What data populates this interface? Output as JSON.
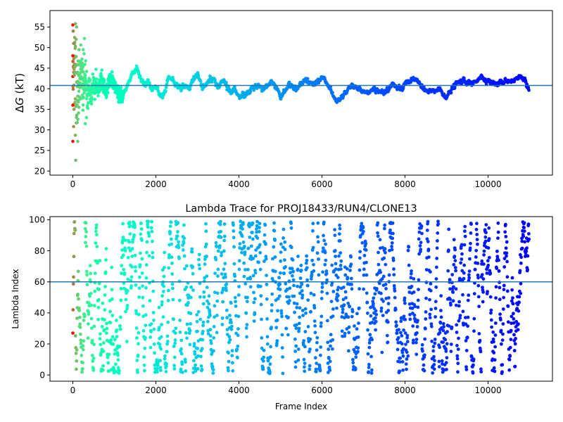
{
  "chart_data": [
    {
      "type": "scatter",
      "title": "",
      "xlabel": "",
      "ylabel": "ΔG (kT)",
      "ylabel_parts": {
        "delta": "Δ",
        "symbol": "G",
        "unit": " (kT)"
      },
      "xlim": [
        -550,
        11550
      ],
      "ylim": [
        19,
        59
      ],
      "xticks": [
        0,
        2000,
        4000,
        6000,
        8000,
        10000
      ],
      "yticks": [
        20,
        25,
        30,
        35,
        40,
        45,
        50,
        55
      ],
      "hline": 40.8,
      "hline_color": "#1f77b4",
      "colormap": "rainbow",
      "color_encoding": "frame index (red early, violet late)",
      "x_range": [
        0,
        10990
      ],
      "trace_profile": {
        "x": [
          0,
          50,
          100,
          150,
          200,
          250,
          300,
          350,
          400,
          450,
          500,
          600,
          700,
          800,
          900,
          1000,
          1100,
          1200,
          1300,
          1400,
          1500,
          1600,
          1700,
          1800,
          1900,
          2000,
          2100,
          2200,
          2300,
          2400,
          2500,
          2600,
          2700,
          2800,
          2900,
          3000,
          3100,
          3200,
          3300,
          3400,
          3500,
          3600,
          3700,
          3800,
          3900,
          4000,
          4200,
          4400,
          4600,
          4800,
          5000,
          5200,
          5400,
          5600,
          5800,
          6000,
          6200,
          6350,
          6500,
          6700,
          6900,
          7100,
          7300,
          7500,
          7700,
          7900,
          8100,
          8300,
          8400,
          8600,
          8800,
          9000,
          9200,
          9400,
          9600,
          9800,
          10000,
          10200,
          10400,
          10600,
          10800,
          10900,
          10990
        ],
        "y": [
          44,
          45,
          40,
          42,
          44,
          40,
          43,
          37,
          41,
          38,
          42,
          40,
          42,
          39,
          43,
          41,
          39,
          38,
          41,
          43,
          45,
          43,
          41,
          42,
          40,
          41,
          38,
          39,
          43,
          42,
          41,
          40,
          41,
          40,
          42,
          44,
          40,
          41,
          43,
          42,
          40,
          42,
          41,
          39,
          40,
          38,
          39,
          41,
          40,
          42,
          38,
          41,
          40,
          42,
          41,
          43,
          40,
          36.5,
          38,
          41,
          40,
          39,
          40,
          39,
          41,
          40,
          42,
          42,
          40,
          39,
          40,
          38,
          41,
          42,
          41,
          43,
          42,
          41,
          42,
          42,
          43,
          42,
          39
        ],
        "spread": [
          10,
          10,
          9,
          8,
          7,
          6,
          5,
          3.5,
          3,
          3,
          2.5,
          2,
          2,
          1.8,
          1.5,
          1.5,
          1.5,
          1.5,
          1.5,
          1.5,
          1.5,
          1.4,
          1.3,
          1.2,
          1.2,
          1.2,
          1.2,
          1.2,
          1.2,
          1.2,
          1.2,
          1.2,
          1.2,
          1.2,
          1.2,
          1.2,
          1.2,
          1.2,
          1.2,
          1.2,
          1.2,
          1.2,
          1.2,
          1.2,
          1.2,
          1.2,
          1.2,
          1.2,
          1.2,
          1.2,
          1.2,
          1.2,
          1.2,
          1.2,
          1.2,
          1.2,
          1.2,
          1.2,
          1.2,
          1.2,
          1.2,
          1.2,
          1.2,
          1.2,
          1.2,
          1.2,
          1.2,
          1.2,
          1.2,
          1.2,
          1.2,
          1.2,
          1.2,
          1.2,
          1.2,
          1.2,
          1.2,
          1.2,
          1.2,
          1.2,
          1.2,
          1.2,
          1.2
        ]
      },
      "early_outliers": [
        {
          "x": 0,
          "y": 55.5
        },
        {
          "x": 10,
          "y": 54
        },
        {
          "x": 20,
          "y": 51
        },
        {
          "x": 0,
          "y": 48
        },
        {
          "x": 40,
          "y": 46
        },
        {
          "x": 0,
          "y": 27.2
        },
        {
          "x": 20,
          "y": 30.8
        },
        {
          "x": 60,
          "y": 28.7
        },
        {
          "x": 70,
          "y": 22.6
        },
        {
          "x": 120,
          "y": 27.2
        },
        {
          "x": 80,
          "y": 52
        },
        {
          "x": 90,
          "y": 55
        },
        {
          "x": 150,
          "y": 49.5
        },
        {
          "x": 250,
          "y": 49.5
        },
        {
          "x": 280,
          "y": 52.2
        },
        {
          "x": 270,
          "y": 48.5
        },
        {
          "x": 300,
          "y": 31.5
        },
        {
          "x": 330,
          "y": 33
        },
        {
          "x": 0,
          "y": 36
        },
        {
          "x": 30,
          "y": 35
        }
      ]
    },
    {
      "type": "scatter",
      "title": "Lambda Trace for PROJ18433/RUN4/CLONE13",
      "xlabel": "Frame Index",
      "ylabel": "Lambda Index",
      "xlim": [
        -550,
        11550
      ],
      "ylim": [
        -4,
        102
      ],
      "xticks": [
        0,
        2000,
        4000,
        6000,
        8000,
        10000
      ],
      "yticks": [
        0,
        20,
        40,
        60,
        80,
        100
      ],
      "hline": 60,
      "hline_color": "#1f77b4",
      "colormap": "rainbow",
      "color_encoding": "frame index (red early, violet late)",
      "x_range": [
        0,
        10990
      ],
      "value_range": [
        1,
        99
      ]
    }
  ]
}
